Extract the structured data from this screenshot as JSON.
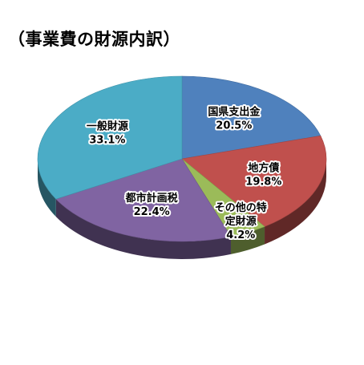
{
  "chart_data": {
    "type": "pie",
    "style": "3d",
    "title": "（事業費の財源内訳）",
    "slices": [
      {
        "name": "国県支出金",
        "value": 20.5,
        "value_label": "20.5%",
        "color": "#4f81bd"
      },
      {
        "name": "地方債",
        "value": 19.8,
        "value_label": "19.8%",
        "color": "#c0504d"
      },
      {
        "name": "その他の特定財源",
        "value": 4.2,
        "value_label": "4.2%",
        "color": "#9bbb59",
        "label_lines": [
          "その他の特",
          "定財源"
        ]
      },
      {
        "name": "都市計画税",
        "value": 22.4,
        "value_label": "22.4%",
        "color": "#8064a2"
      },
      {
        "name": "一般財源",
        "value": 33.1,
        "value_label": "33.1%",
        "color": "#4bacc6"
      }
    ]
  }
}
